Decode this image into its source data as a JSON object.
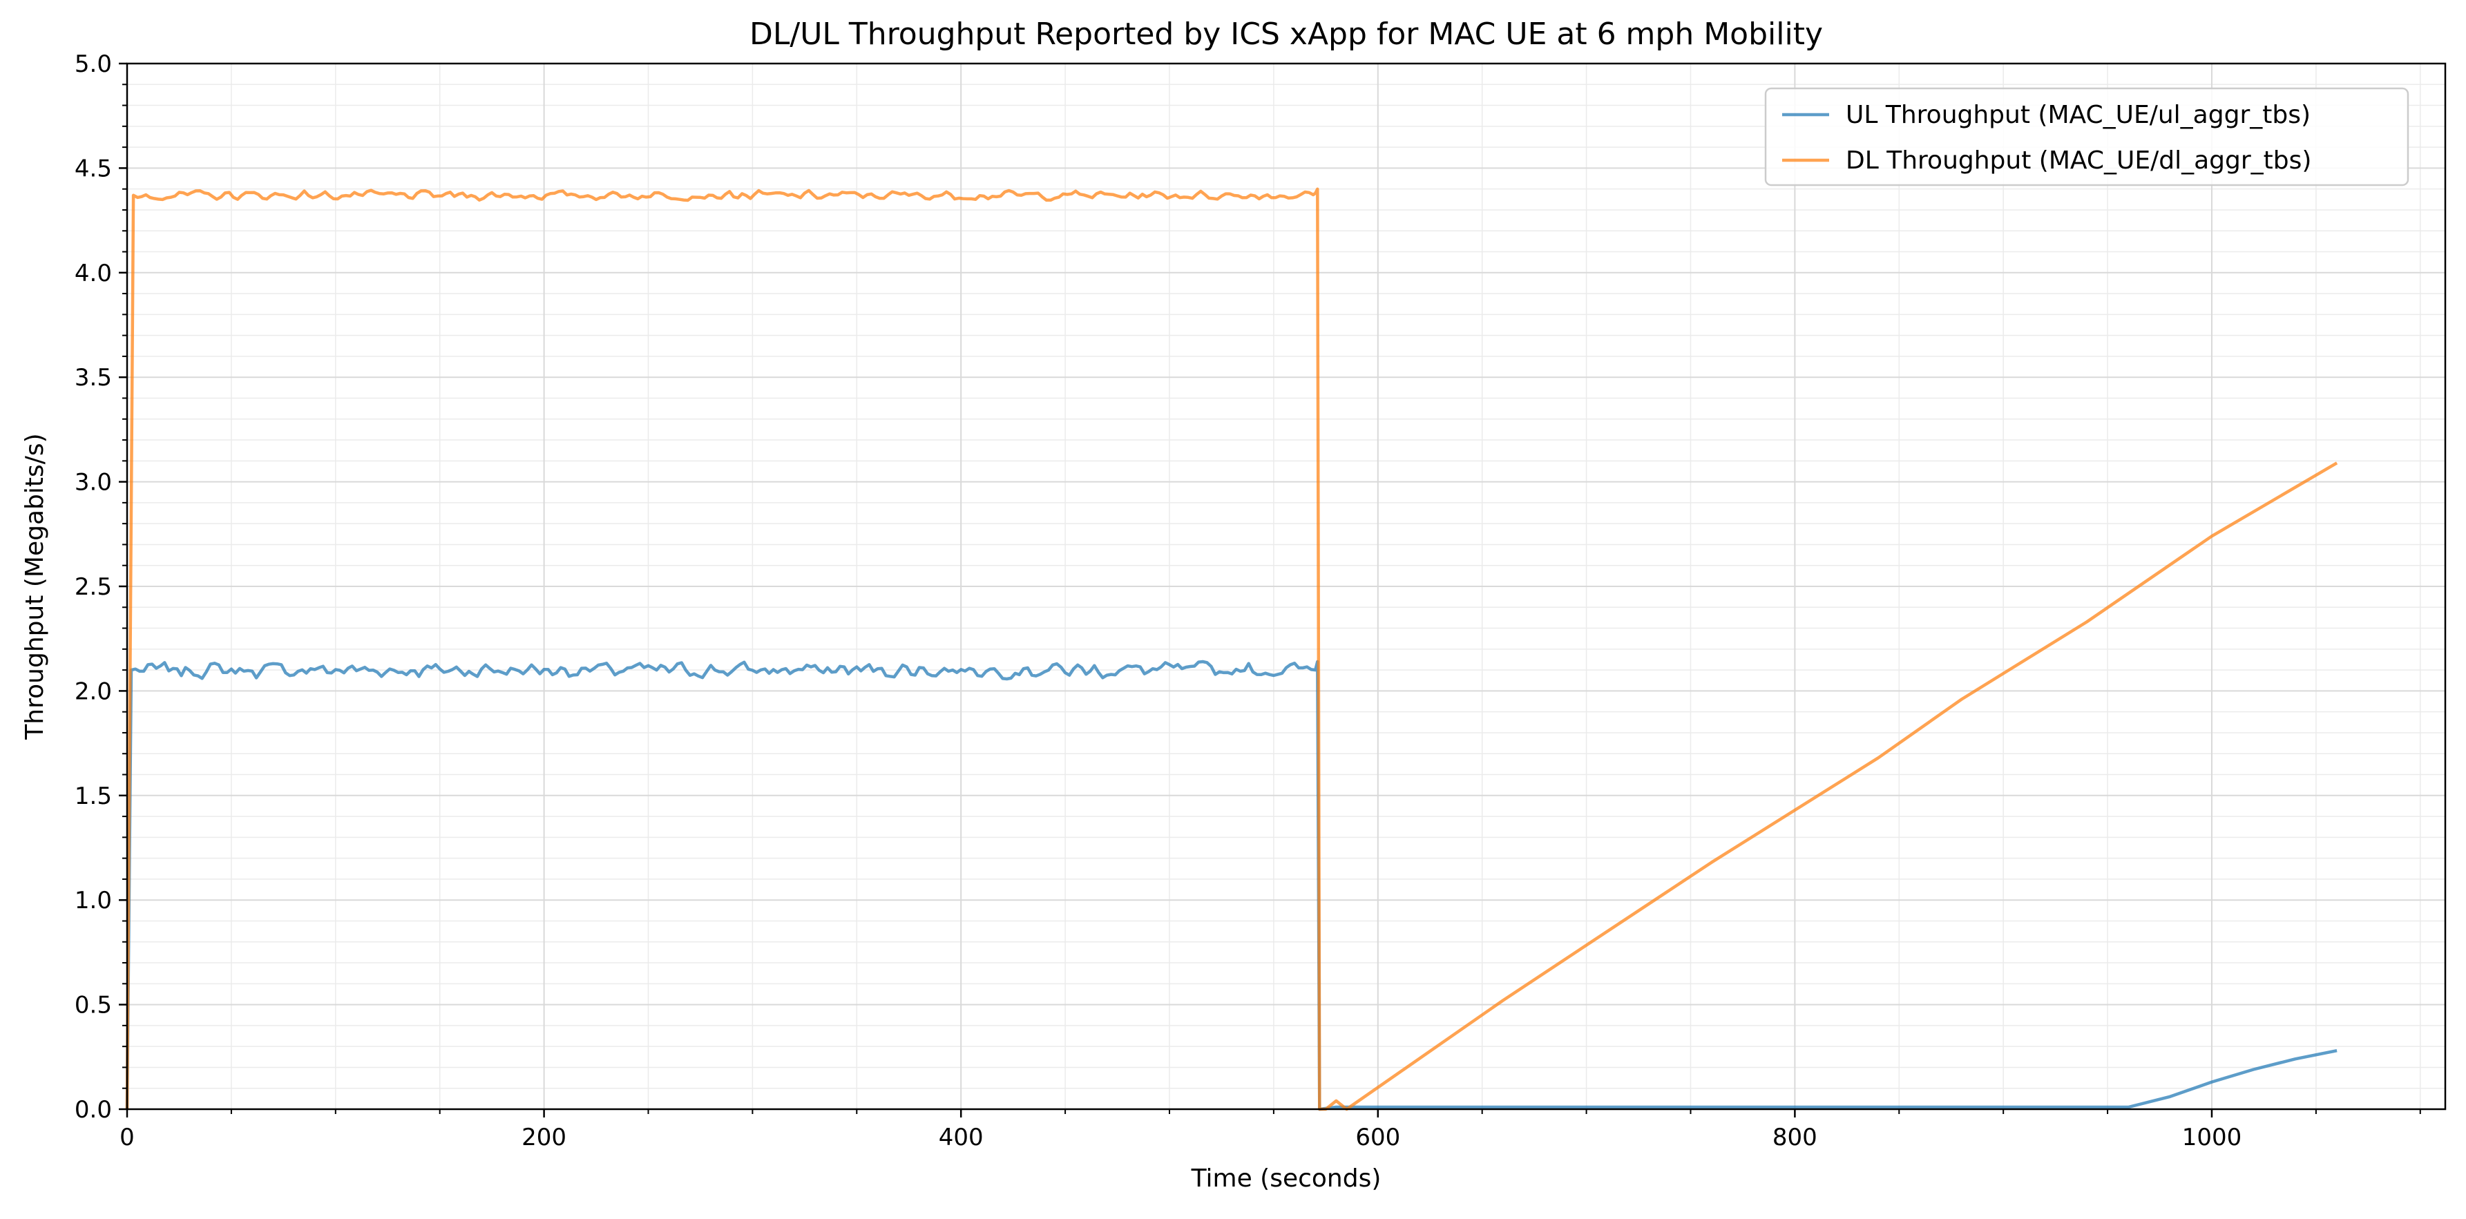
{
  "chart_data": {
    "type": "line",
    "title": "DL/UL Throughput Reported by ICS xApp for MAC UE at 6 mph Mobility",
    "xlabel": "Time (seconds)",
    "ylabel": "Throughput (Megabits/s)",
    "xlim": [
      0,
      1112
    ],
    "ylim": [
      0,
      5.0
    ],
    "x_ticks": [
      "0",
      "200",
      "400",
      "600",
      "800",
      "1000"
    ],
    "y_ticks": [
      "0.0",
      "0.5",
      "1.0",
      "1.5",
      "2.0",
      "2.5",
      "3.0",
      "3.5",
      "4.0",
      "4.5",
      "5.0"
    ],
    "grid": true,
    "minor_grid": true,
    "legend_position": "top-right",
    "series": [
      {
        "name": "UL Throughput (MAC_UE/ul_aggr_tbs)",
        "color": "#1f77b4",
        "base_value": 2.1,
        "noise_amplitude": 0.045,
        "x": [
          0,
          2,
          570,
          571,
          572,
          580,
          960,
          980,
          1000,
          1020,
          1040,
          1060
        ],
        "y": [
          0.0,
          2.1,
          2.1,
          2.14,
          0.0,
          0.01,
          0.01,
          0.06,
          0.13,
          0.19,
          0.24,
          0.28
        ]
      },
      {
        "name": "DL Throughput (MAC_UE/dl_aggr_tbs)",
        "color": "#ff7f0e",
        "base_value": 4.37,
        "noise_amplitude": 0.025,
        "x": [
          0,
          3,
          570,
          571,
          572,
          575,
          580,
          585,
          660,
          760,
          840,
          880,
          940,
          1000,
          1060
        ],
        "y": [
          0.0,
          4.37,
          4.38,
          4.4,
          0.0,
          0.0,
          0.04,
          0.0,
          0.52,
          1.18,
          1.68,
          1.96,
          2.33,
          2.74,
          3.09
        ]
      }
    ]
  }
}
